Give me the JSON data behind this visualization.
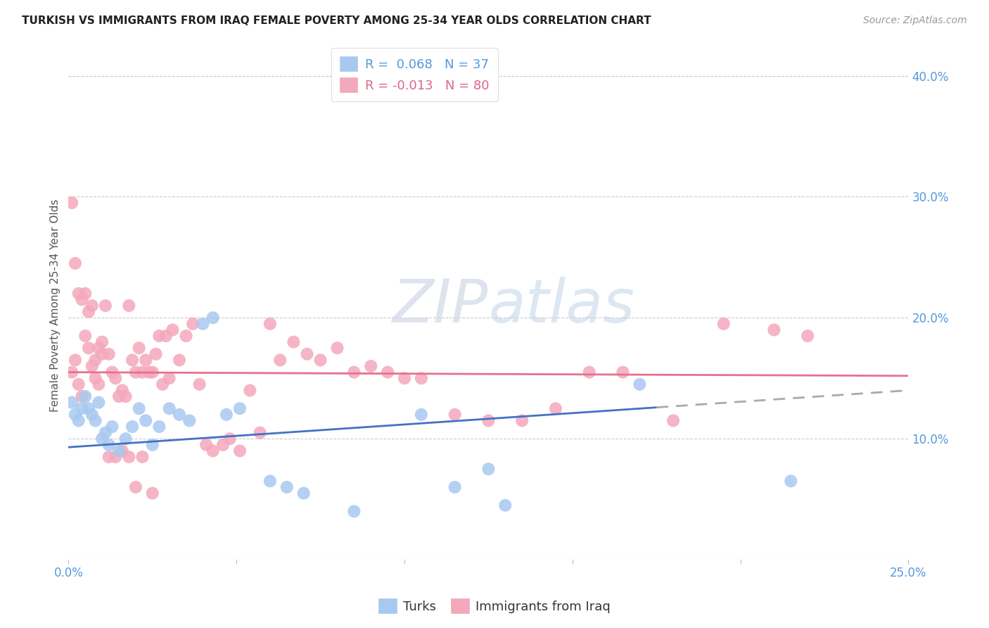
{
  "title": "TURKISH VS IMMIGRANTS FROM IRAQ FEMALE POVERTY AMONG 25-34 YEAR OLDS CORRELATION CHART",
  "source": "Source: ZipAtlas.com",
  "ylabel": "Female Poverty Among 25-34 Year Olds",
  "xlim": [
    0.0,
    0.25
  ],
  "ylim": [
    0.0,
    0.42
  ],
  "legend_labels": [
    "Turks",
    "Immigrants from Iraq"
  ],
  "turks_color": "#A8C8F0",
  "iraq_color": "#F4A8BC",
  "turks_line_color": "#4472C4",
  "iraq_line_color": "#E87090",
  "turks_R": 0.068,
  "turks_N": 37,
  "iraq_R": -0.013,
  "iraq_N": 80,
  "turks_x": [
    0.001,
    0.002,
    0.003,
    0.004,
    0.005,
    0.006,
    0.007,
    0.008,
    0.009,
    0.01,
    0.011,
    0.012,
    0.013,
    0.015,
    0.017,
    0.019,
    0.021,
    0.023,
    0.025,
    0.027,
    0.03,
    0.033,
    0.036,
    0.04,
    0.043,
    0.047,
    0.051,
    0.06,
    0.065,
    0.07,
    0.085,
    0.105,
    0.115,
    0.125,
    0.13,
    0.17,
    0.215
  ],
  "turks_y": [
    0.13,
    0.12,
    0.115,
    0.125,
    0.135,
    0.125,
    0.12,
    0.115,
    0.13,
    0.1,
    0.105,
    0.095,
    0.11,
    0.09,
    0.1,
    0.11,
    0.125,
    0.115,
    0.095,
    0.11,
    0.125,
    0.12,
    0.115,
    0.195,
    0.2,
    0.12,
    0.125,
    0.065,
    0.06,
    0.055,
    0.04,
    0.12,
    0.06,
    0.075,
    0.045,
    0.145,
    0.065
  ],
  "iraq_x": [
    0.001,
    0.002,
    0.003,
    0.004,
    0.005,
    0.006,
    0.007,
    0.008,
    0.009,
    0.01,
    0.011,
    0.012,
    0.013,
    0.014,
    0.015,
    0.016,
    0.017,
    0.018,
    0.019,
    0.02,
    0.021,
    0.022,
    0.023,
    0.024,
    0.025,
    0.026,
    0.027,
    0.028,
    0.029,
    0.03,
    0.031,
    0.033,
    0.035,
    0.037,
    0.039,
    0.041,
    0.043,
    0.046,
    0.048,
    0.051,
    0.054,
    0.057,
    0.06,
    0.063,
    0.067,
    0.071,
    0.075,
    0.08,
    0.085,
    0.09,
    0.095,
    0.1,
    0.105,
    0.115,
    0.125,
    0.135,
    0.145,
    0.155,
    0.165,
    0.18,
    0.195,
    0.21,
    0.001,
    0.002,
    0.003,
    0.004,
    0.005,
    0.006,
    0.007,
    0.008,
    0.009,
    0.01,
    0.012,
    0.014,
    0.016,
    0.018,
    0.02,
    0.022,
    0.025,
    0.22
  ],
  "iraq_y": [
    0.155,
    0.165,
    0.145,
    0.135,
    0.185,
    0.175,
    0.16,
    0.15,
    0.145,
    0.18,
    0.21,
    0.17,
    0.155,
    0.15,
    0.135,
    0.14,
    0.135,
    0.21,
    0.165,
    0.155,
    0.175,
    0.155,
    0.165,
    0.155,
    0.155,
    0.17,
    0.185,
    0.145,
    0.185,
    0.15,
    0.19,
    0.165,
    0.185,
    0.195,
    0.145,
    0.095,
    0.09,
    0.095,
    0.1,
    0.09,
    0.14,
    0.105,
    0.195,
    0.165,
    0.18,
    0.17,
    0.165,
    0.175,
    0.155,
    0.16,
    0.155,
    0.15,
    0.15,
    0.12,
    0.115,
    0.115,
    0.125,
    0.155,
    0.155,
    0.115,
    0.195,
    0.19,
    0.295,
    0.245,
    0.22,
    0.215,
    0.22,
    0.205,
    0.21,
    0.165,
    0.175,
    0.17,
    0.085,
    0.085,
    0.09,
    0.085,
    0.06,
    0.085,
    0.055,
    0.185
  ],
  "turks_line_x0": 0.0,
  "turks_line_y0": 0.093,
  "turks_line_x1": 0.25,
  "turks_line_y1": 0.14,
  "iraq_line_x0": 0.0,
  "iraq_line_y0": 0.155,
  "iraq_line_x1": 0.25,
  "iraq_line_y1": 0.152,
  "dash_split": 0.175
}
